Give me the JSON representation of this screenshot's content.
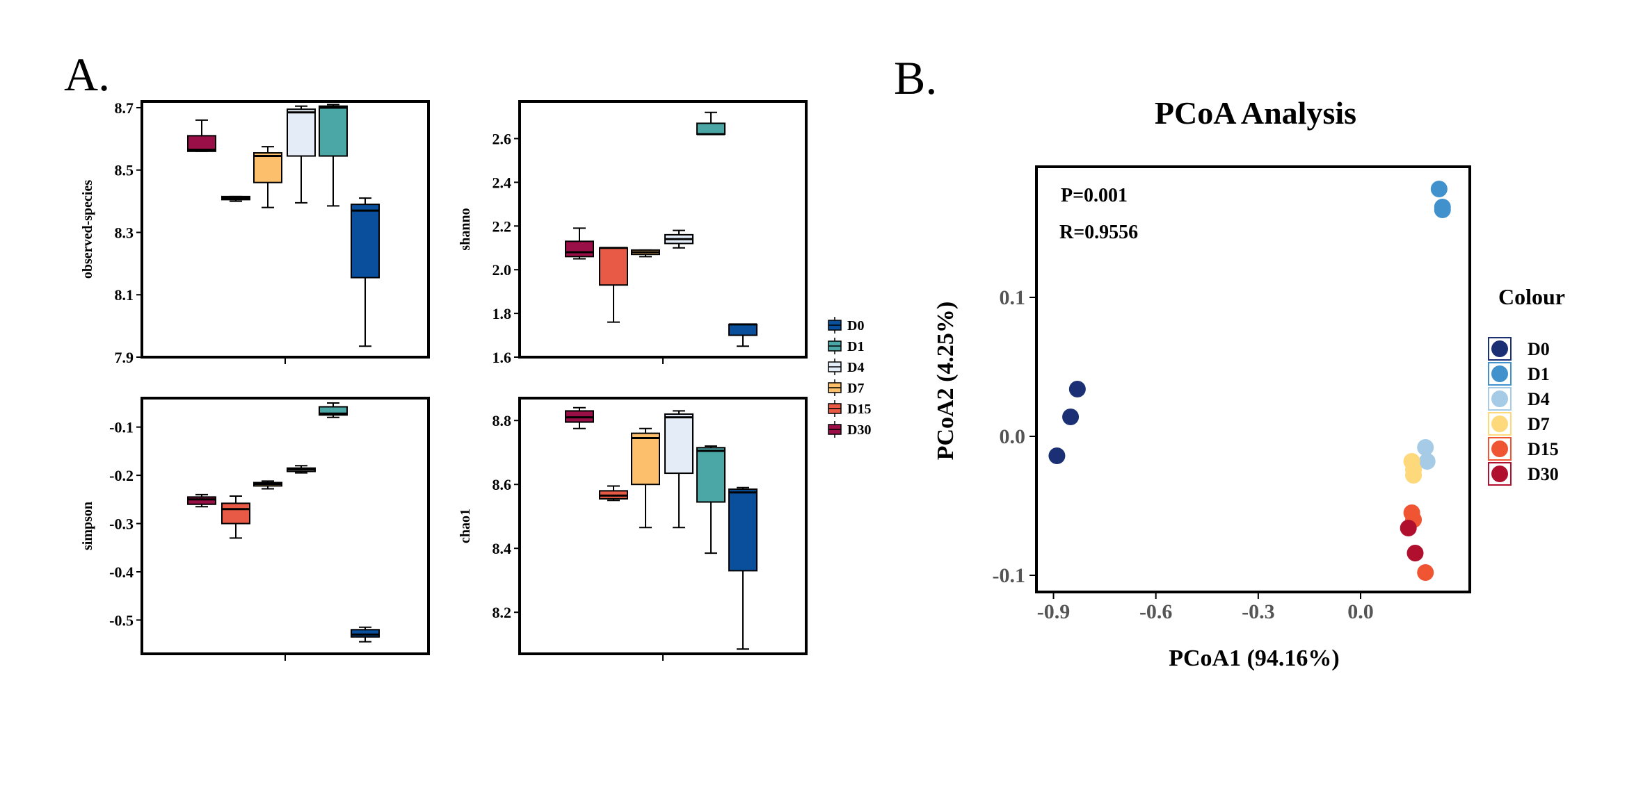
{
  "panel_a": {
    "label": "A."
  },
  "panel_b": {
    "label": "B."
  },
  "groups": [
    {
      "name": "D0",
      "color": "#0a4f9c"
    },
    {
      "name": "D1",
      "color": "#4aa7a6"
    },
    {
      "name": "D4",
      "color": "#e4ecf7"
    },
    {
      "name": "D7",
      "color": "#fcbf6c"
    },
    {
      "name": "D15",
      "color": "#e85a45"
    },
    {
      "name": "D30",
      "color": "#9a0f47"
    }
  ],
  "legend_a": {
    "items": [
      "D0",
      "D1",
      "D4",
      "D7",
      "D15",
      "D30"
    ]
  },
  "chart_data": [
    {
      "type": "box",
      "ylabel": "observed-species",
      "ylim": [
        7.9,
        8.72
      ],
      "yticks": [
        7.9,
        8.1,
        8.3,
        8.5,
        8.7
      ],
      "ytick_labels": [
        "7.9",
        "8.1",
        "8.3",
        "8.5",
        "8.7"
      ],
      "boxes": [
        {
          "group": "D30",
          "min": 8.56,
          "q1": 8.56,
          "median": 8.565,
          "q3": 8.61,
          "max": 8.66
        },
        {
          "group": "D15",
          "min": 8.4,
          "q1": 8.405,
          "median": 8.41,
          "q3": 8.415,
          "max": 8.415
        },
        {
          "group": "D7",
          "min": 8.38,
          "q1": 8.46,
          "median": 8.545,
          "q3": 8.555,
          "max": 8.575
        },
        {
          "group": "D4",
          "min": 8.395,
          "q1": 8.545,
          "median": 8.685,
          "q3": 8.695,
          "max": 8.705
        },
        {
          "group": "D1",
          "min": 8.385,
          "q1": 8.545,
          "median": 8.7,
          "q3": 8.705,
          "max": 8.71
        },
        {
          "group": "D0",
          "min": 7.935,
          "q1": 8.155,
          "median": 8.37,
          "q3": 8.39,
          "max": 8.41
        }
      ]
    },
    {
      "type": "box",
      "ylabel": "shanno",
      "ylim": [
        1.6,
        2.77
      ],
      "yticks": [
        1.6,
        1.8,
        2.0,
        2.2,
        2.4,
        2.6
      ],
      "ytick_labels": [
        "1.6",
        "1.8",
        "2.0",
        "2.2",
        "2.4",
        "2.6"
      ],
      "boxes": [
        {
          "group": "D30",
          "min": 2.05,
          "q1": 2.06,
          "median": 2.08,
          "q3": 2.13,
          "max": 2.19
        },
        {
          "group": "D15",
          "min": 1.76,
          "q1": 1.93,
          "median": 2.1,
          "q3": 2.1,
          "max": 2.1
        },
        {
          "group": "D7",
          "min": 2.06,
          "q1": 2.07,
          "median": 2.08,
          "q3": 2.09,
          "max": 2.09
        },
        {
          "group": "D4",
          "min": 2.1,
          "q1": 2.12,
          "median": 2.14,
          "q3": 2.16,
          "max": 2.18
        },
        {
          "group": "D1",
          "min": 2.62,
          "q1": 2.62,
          "median": 2.62,
          "q3": 2.67,
          "max": 2.72
        },
        {
          "group": "D0",
          "min": 1.65,
          "q1": 1.7,
          "median": 1.75,
          "q3": 1.75,
          "max": 1.75
        }
      ]
    },
    {
      "type": "box",
      "ylabel": "simpson",
      "ylim": [
        -0.57,
        -0.04
      ],
      "yticks": [
        -0.5,
        -0.4,
        -0.3,
        -0.2,
        -0.1
      ],
      "ytick_labels": [
        "-0.5",
        "-0.4",
        "-0.3",
        "-0.2",
        "-0.1"
      ],
      "boxes": [
        {
          "group": "D30",
          "min": -0.265,
          "q1": -0.26,
          "median": -0.25,
          "q3": -0.245,
          "max": -0.24
        },
        {
          "group": "D15",
          "min": -0.33,
          "q1": -0.3,
          "median": -0.27,
          "q3": -0.258,
          "max": -0.243
        },
        {
          "group": "D7",
          "min": -0.228,
          "q1": -0.222,
          "median": -0.218,
          "q3": -0.215,
          "max": -0.212
        },
        {
          "group": "D4",
          "min": -0.195,
          "q1": -0.192,
          "median": -0.188,
          "q3": -0.185,
          "max": -0.18
        },
        {
          "group": "D1",
          "min": -0.08,
          "q1": -0.075,
          "median": -0.072,
          "q3": -0.058,
          "max": -0.05
        },
        {
          "group": "D0",
          "min": -0.545,
          "q1": -0.535,
          "median": -0.53,
          "q3": -0.52,
          "max": -0.515
        }
      ]
    },
    {
      "type": "box",
      "ylabel": "chao1",
      "ylim": [
        8.07,
        8.87
      ],
      "yticks": [
        8.2,
        8.4,
        8.6,
        8.8
      ],
      "ytick_labels": [
        "8.2",
        "8.4",
        "8.6",
        "8.8"
      ],
      "boxes": [
        {
          "group": "D30",
          "min": 8.775,
          "q1": 8.795,
          "median": 8.81,
          "q3": 8.83,
          "max": 8.84
        },
        {
          "group": "D15",
          "min": 8.55,
          "q1": 8.555,
          "median": 8.565,
          "q3": 8.58,
          "max": 8.595
        },
        {
          "group": "D7",
          "min": 8.465,
          "q1": 8.6,
          "median": 8.745,
          "q3": 8.76,
          "max": 8.775
        },
        {
          "group": "D4",
          "min": 8.465,
          "q1": 8.635,
          "median": 8.81,
          "q3": 8.82,
          "max": 8.83
        },
        {
          "group": "D1",
          "min": 8.385,
          "q1": 8.545,
          "median": 8.705,
          "q3": 8.715,
          "max": 8.72
        },
        {
          "group": "D0",
          "min": 8.085,
          "q1": 8.33,
          "median": 8.575,
          "q3": 8.585,
          "max": 8.59
        }
      ]
    },
    {
      "type": "scatter",
      "title": "PCoA Analysis",
      "xlabel": "PCoA1 (94.16%)",
      "ylabel": "PCoA2 (4.25%)",
      "xlim": [
        -0.95,
        0.32
      ],
      "ylim": [
        -0.112,
        0.194
      ],
      "xticks": [
        -0.9,
        -0.6,
        -0.3,
        0.0
      ],
      "xtick_labels": [
        "-0.9",
        "-0.6",
        "-0.3",
        "0.0"
      ],
      "yticks": [
        -0.1,
        0.0,
        0.1
      ],
      "ytick_labels": [
        "-0.1",
        "0.0",
        "0.1"
      ],
      "annotations": [
        "P=0.001",
        "R=0.9556"
      ],
      "legend_title": "Colour",
      "legend_items": [
        "D0",
        "D1",
        "D4",
        "D7",
        "D15",
        "D30"
      ],
      "series": [
        {
          "name": "D0",
          "color": "#1a2f74",
          "x": [
            -0.83,
            -0.85,
            -0.89
          ],
          "y": [
            0.034,
            0.014,
            -0.014
          ]
        },
        {
          "name": "D1",
          "color": "#4191cc",
          "x": [
            0.23,
            0.24,
            0.24
          ],
          "y": [
            0.178,
            0.163,
            0.165
          ]
        },
        {
          "name": "D4",
          "color": "#a6cbe6",
          "x": [
            0.19,
            0.195
          ],
          "y": [
            -0.008,
            -0.018
          ]
        },
        {
          "name": "D7",
          "color": "#fdd97b",
          "x": [
            0.15,
            0.155,
            0.155
          ],
          "y": [
            -0.018,
            -0.024,
            -0.028
          ]
        },
        {
          "name": "D15",
          "color": "#ef5533",
          "x": [
            0.15,
            0.155,
            0.19
          ],
          "y": [
            -0.055,
            -0.06,
            -0.098
          ]
        },
        {
          "name": "D30",
          "color": "#b10f2e",
          "x": [
            0.14,
            0.16
          ],
          "y": [
            -0.066,
            -0.084
          ]
        }
      ]
    }
  ]
}
